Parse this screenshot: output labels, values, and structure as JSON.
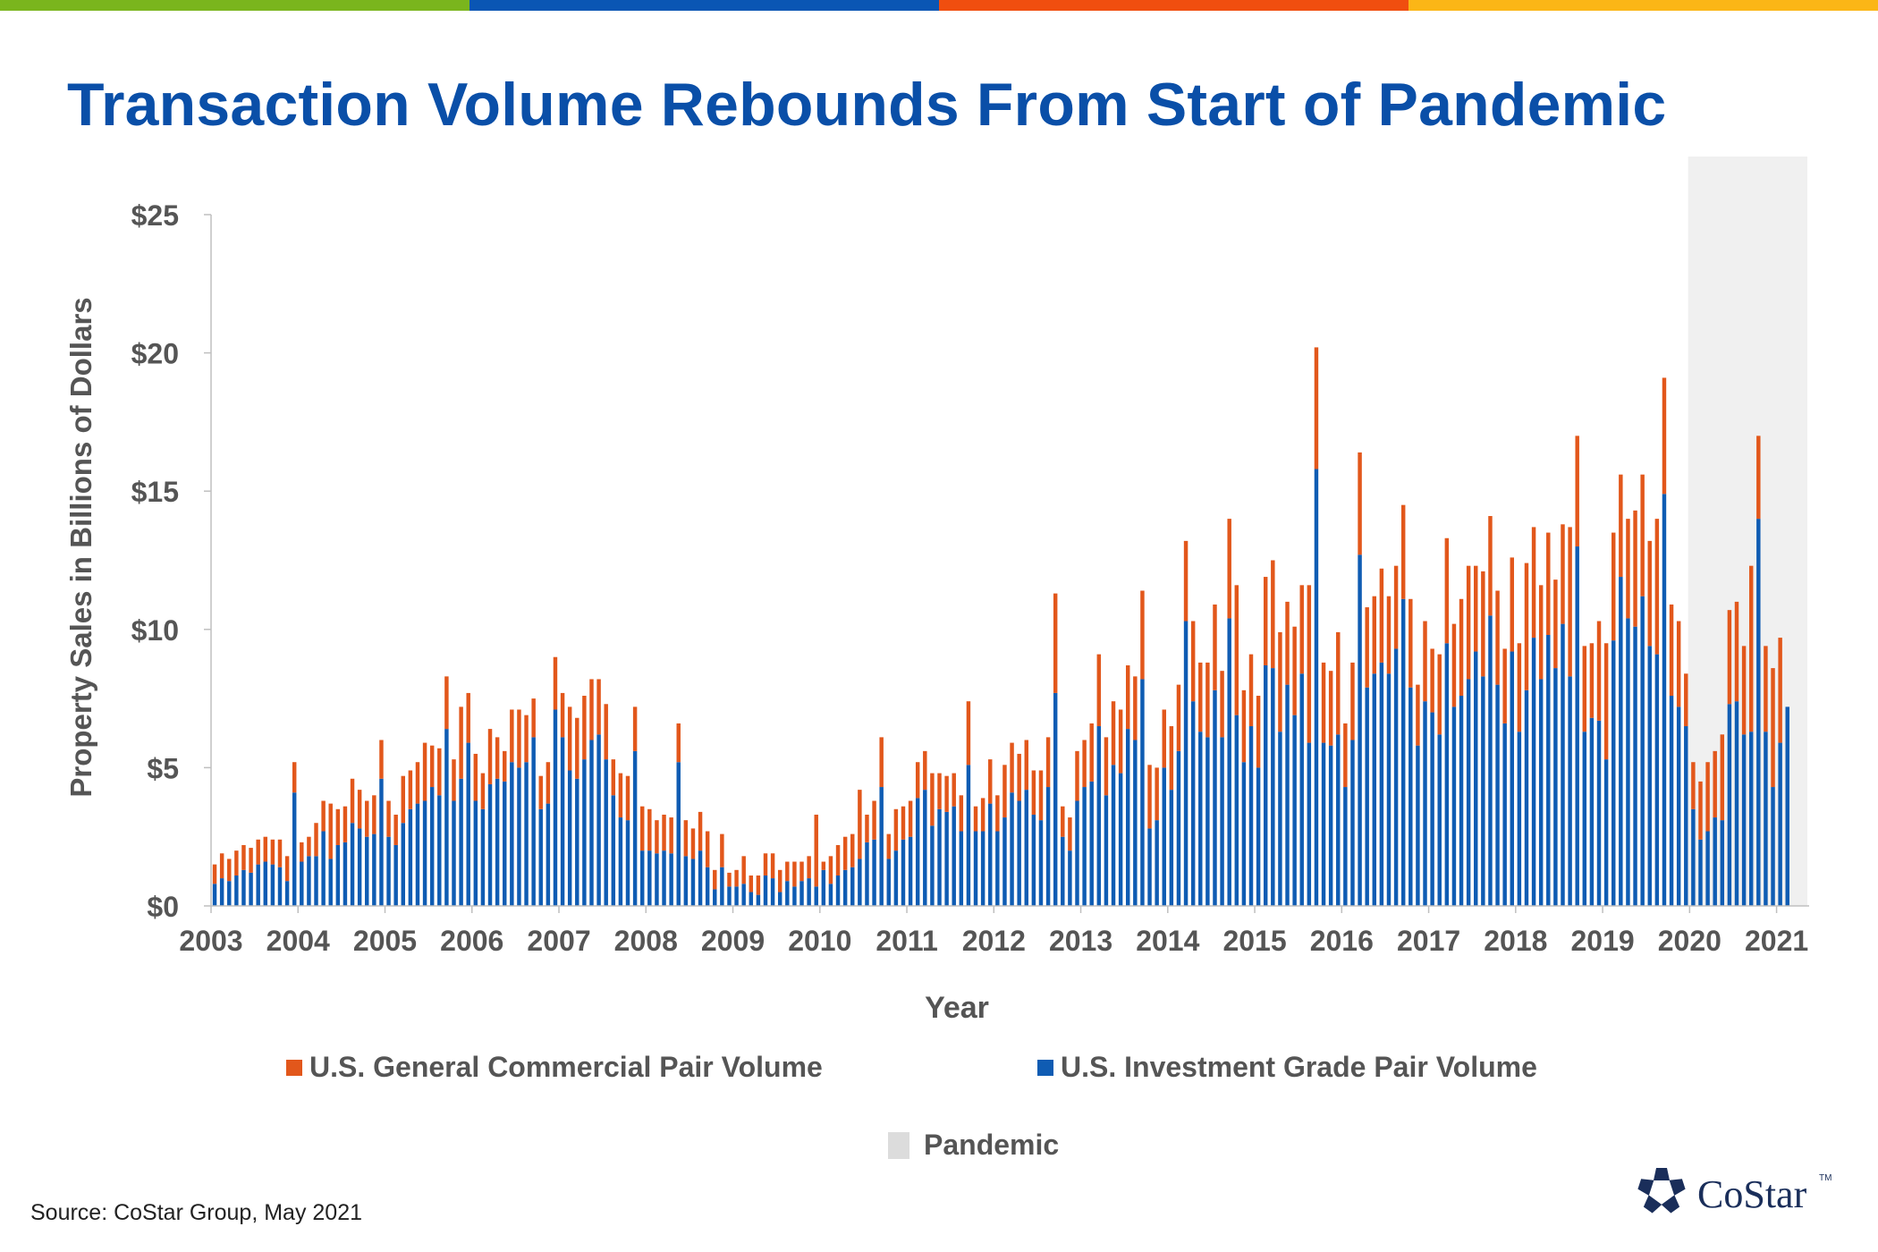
{
  "brand_bar": [
    "#7ab51d",
    "#0a56b4",
    "#f04e0f",
    "#fbb616"
  ],
  "title": "Transaction Volume Rebounds From Start of Pandemic",
  "source": "Source: CoStar Group, May 2021",
  "logo_text": "CoStar",
  "logo_tm": "TM",
  "legend": {
    "general": "U.S. General Commercial Pair Volume",
    "investment": "U.S. Investment Grade Pair Volume",
    "pandemic": "Pandemic"
  },
  "chart_data": {
    "type": "bar",
    "stacked": true,
    "xlabel": "Year",
    "ylabel": "Property Sales in Billions of Dollars",
    "ylim": [
      0,
      25
    ],
    "yticks": [
      "$0",
      "$5",
      "$10",
      "$15",
      "$20",
      "$25"
    ],
    "xticks": [
      "2003",
      "2004",
      "2005",
      "2006",
      "2007",
      "2008",
      "2009",
      "2010",
      "2011",
      "2012",
      "2013",
      "2014",
      "2015",
      "2016",
      "2017",
      "2018",
      "2019",
      "2020",
      "2021"
    ],
    "x_start": "2003-01",
    "x_end": "2021-04",
    "shaded_region": {
      "label": "Pandemic",
      "from": "2020-01",
      "to": "2021-04",
      "color": "#f0f0f0"
    },
    "series_colors": {
      "U.S. Investment Grade Pair Volume": "#0f5cb3",
      "U.S. General Commercial Pair Volume": "#e2571b"
    },
    "series": [
      {
        "name": "U.S. Investment Grade Pair Volume",
        "values": [
          0.8,
          1.0,
          0.9,
          1.1,
          1.3,
          1.2,
          1.5,
          1.6,
          1.5,
          1.4,
          0.9,
          4.1,
          1.6,
          1.8,
          1.8,
          2.7,
          1.7,
          2.2,
          2.3,
          3.0,
          2.8,
          2.5,
          2.6,
          4.6,
          2.5,
          2.2,
          3.0,
          3.5,
          3.7,
          3.8,
          4.3,
          4.0,
          6.4,
          3.8,
          4.6,
          5.9,
          3.8,
          3.5,
          4.4,
          4.6,
          4.5,
          5.2,
          5.0,
          5.2,
          6.1,
          3.5,
          3.7,
          7.1,
          6.1,
          4.9,
          4.6,
          5.3,
          6.0,
          6.2,
          5.3,
          4.0,
          3.2,
          3.1,
          5.6,
          2.0,
          2.0,
          1.9,
          2.0,
          1.9,
          5.2,
          1.8,
          1.7,
          2.0,
          1.4,
          0.6,
          1.4,
          0.7,
          0.7,
          0.8,
          0.5,
          0.4,
          1.1,
          1.0,
          0.5,
          0.9,
          0.7,
          0.9,
          1.0,
          0.7,
          1.3,
          0.8,
          1.1,
          1.3,
          1.4,
          1.7,
          2.3,
          2.4,
          4.3,
          1.7,
          2.0,
          2.4,
          2.5,
          3.9,
          4.2,
          2.9,
          3.5,
          3.4,
          3.6,
          2.7,
          5.1,
          2.7,
          2.7,
          3.7,
          2.7,
          3.2,
          4.1,
          3.8,
          4.2,
          3.3,
          3.1,
          4.3,
          7.7,
          2.5,
          2.0,
          3.8,
          4.3,
          4.5,
          6.5,
          4.0,
          5.1,
          4.8,
          6.4,
          6.0,
          8.2,
          2.8,
          3.1,
          5.0,
          4.2,
          5.6,
          10.3,
          7.4,
          6.3,
          6.1,
          7.8,
          6.1,
          10.4,
          6.9,
          5.2,
          6.5,
          5.0,
          8.7,
          8.6,
          6.3,
          8.0,
          6.9,
          8.4,
          5.9,
          15.8,
          5.9,
          5.8,
          6.2,
          4.3,
          6.0,
          12.7,
          7.9,
          8.4,
          8.8,
          8.4,
          9.3,
          11.1,
          7.9,
          5.8,
          7.4,
          7.0,
          6.2,
          9.5,
          7.2,
          7.6,
          8.2,
          9.2,
          8.3,
          10.5,
          8.0,
          6.6,
          9.2,
          6.3,
          7.8,
          9.7,
          8.2,
          9.8,
          8.6,
          10.2,
          8.3,
          13.0,
          6.3,
          6.8,
          6.7,
          5.3,
          9.6,
          11.9,
          10.4,
          10.1,
          11.2,
          9.4,
          9.1,
          14.9,
          7.6,
          7.2,
          6.5,
          3.5,
          2.4,
          2.7,
          3.2,
          3.1,
          7.3,
          7.4,
          6.2,
          6.3,
          14.0,
          6.3,
          4.3,
          5.9,
          7.2
        ]
      },
      {
        "name": "U.S. General Commercial Pair Volume",
        "values": [
          0.7,
          0.9,
          0.8,
          0.9,
          0.9,
          0.9,
          0.9,
          0.9,
          0.9,
          1.0,
          0.9,
          1.1,
          0.7,
          0.7,
          1.2,
          1.1,
          2.0,
          1.3,
          1.3,
          1.6,
          1.4,
          1.3,
          1.4,
          1.4,
          1.3,
          1.1,
          1.7,
          1.4,
          1.5,
          2.1,
          1.5,
          1.7,
          1.9,
          1.5,
          2.6,
          1.8,
          1.7,
          1.3,
          2.0,
          1.5,
          1.1,
          1.9,
          2.1,
          1.7,
          1.4,
          1.2,
          1.5,
          1.9,
          1.6,
          2.3,
          2.2,
          2.3,
          2.2,
          2.0,
          2.0,
          1.3,
          1.6,
          1.6,
          1.6,
          1.6,
          1.5,
          1.2,
          1.3,
          1.3,
          1.4,
          1.3,
          1.1,
          1.4,
          1.3,
          0.7,
          1.2,
          0.5,
          0.6,
          1.0,
          0.6,
          0.7,
          0.8,
          0.9,
          0.8,
          0.7,
          0.9,
          0.7,
          0.8,
          2.6,
          0.3,
          1.0,
          1.1,
          1.2,
          1.2,
          2.5,
          1.0,
          1.4,
          1.8,
          0.9,
          1.5,
          1.2,
          1.3,
          1.3,
          1.4,
          1.9,
          1.3,
          1.3,
          1.2,
          1.3,
          2.3,
          0.9,
          1.2,
          1.6,
          1.3,
          1.9,
          1.8,
          1.7,
          1.8,
          1.6,
          1.8,
          1.8,
          3.6,
          1.1,
          1.2,
          1.8,
          1.7,
          2.1,
          2.6,
          2.1,
          2.3,
          2.3,
          2.3,
          2.3,
          3.2,
          2.3,
          1.9,
          2.1,
          2.3,
          2.4,
          2.9,
          2.9,
          2.5,
          2.7,
          3.1,
          2.4,
          3.6,
          4.7,
          2.6,
          2.6,
          2.6,
          3.2,
          3.9,
          3.6,
          3.0,
          3.2,
          3.2,
          5.7,
          4.4,
          2.9,
          2.7,
          3.7,
          2.3,
          2.8,
          3.7,
          2.9,
          2.8,
          3.4,
          2.8,
          3.0,
          3.4,
          3.2,
          2.2,
          2.9,
          2.3,
          2.9,
          3.8,
          3.0,
          3.5,
          4.1,
          3.1,
          3.8,
          3.6,
          3.4,
          2.7,
          3.4,
          3.2,
          4.6,
          4.0,
          3.4,
          3.7,
          3.2,
          3.6,
          5.4,
          4.0,
          3.1,
          2.7,
          3.6,
          4.2,
          3.9,
          3.7,
          3.6,
          4.2,
          4.4,
          3.8,
          4.9,
          4.2,
          3.3,
          3.1,
          1.9,
          1.7,
          2.1,
          2.5,
          2.4,
          3.1,
          3.4,
          3.6,
          3.2,
          6.0,
          3.0,
          3.1,
          4.3,
          3.8
        ]
      }
    ]
  }
}
